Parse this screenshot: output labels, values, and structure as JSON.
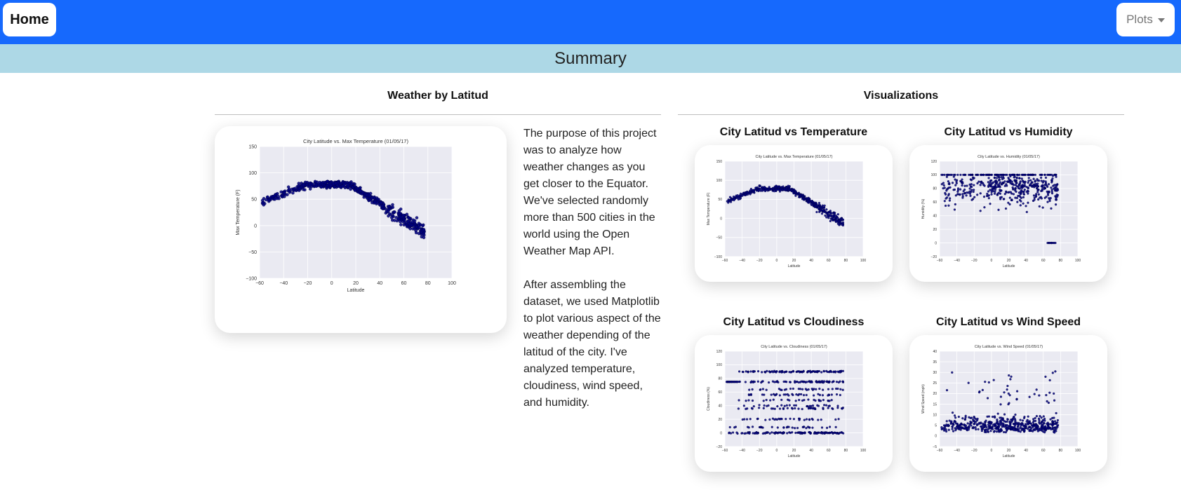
{
  "nav": {
    "home_label": "Home",
    "plots_label": "Plots"
  },
  "summary": {
    "title": "Summary"
  },
  "left_section": {
    "title": "Weather by Latitud",
    "paragraphs": [
      "The purpose of this project was to analyze how weather changes as you get closer to the Equator. We've selected randomly more than 500 cities in the world using the Open Weather Map API.",
      "After assembling the dataset, we used Matplotlib to plot various aspect of the weather depending of the latitud of the city. I've analyzed temperature, cloudiness, wind speed, and humidity."
    ]
  },
  "right_section": {
    "title": "Visualizations",
    "thumb_titles": {
      "temperature": "City Latitud vs Temperature",
      "humidity": "City Latitud vs Humidity",
      "cloudiness": "City Latitud vs Cloudiness",
      "wind": "City Latitud vs Wind Speed"
    }
  },
  "colors": {
    "navbar": "#1669fd",
    "summary_bar": "#add8e6",
    "plot_bg": "#eaeaf2",
    "point": "#000080"
  },
  "chart_data": [
    {
      "id": "main_temp",
      "type": "scatter",
      "title": "City Latitude vs. Max Temperature (01/05/17)",
      "xlabel": "Latitude",
      "ylabel": "Max Temperature (F)",
      "xlim": [
        -60,
        100
      ],
      "ylim": [
        -100,
        150
      ],
      "xticks": [
        -60,
        -40,
        -20,
        0,
        20,
        40,
        60,
        80,
        100
      ],
      "yticks": [
        -100,
        -50,
        0,
        50,
        100,
        150
      ],
      "grid": true
    },
    {
      "id": "thumb_temp",
      "type": "scatter",
      "title": "City Latitude vs. Max Temperature (01/05/17)",
      "xlabel": "Latitude",
      "ylabel": "Max Temperature (F)",
      "xlim": [
        -60,
        100
      ],
      "ylim": [
        -100,
        150
      ],
      "xticks": [
        -60,
        -40,
        -20,
        0,
        20,
        40,
        60,
        80,
        100
      ],
      "yticks": [
        -100,
        -50,
        0,
        50,
        100,
        150
      ],
      "grid": true
    },
    {
      "id": "thumb_humidity",
      "type": "scatter",
      "title": "City Latitude vs. Humidity (01/05/17)",
      "xlabel": "Latitude",
      "ylabel": "Humidity (%)",
      "xlim": [
        -60,
        100
      ],
      "ylim": [
        -20,
        120
      ],
      "xticks": [
        -60,
        -40,
        -20,
        0,
        20,
        40,
        60,
        80,
        100
      ],
      "yticks": [
        -20,
        0,
        20,
        40,
        60,
        80,
        100,
        120
      ],
      "grid": true
    },
    {
      "id": "thumb_cloudiness",
      "type": "scatter",
      "title": "City Latitude vs. Cloudiness (01/05/17)",
      "xlabel": "Latitude",
      "ylabel": "Cloudiness (%)",
      "xlim": [
        -60,
        100
      ],
      "ylim": [
        -20,
        120
      ],
      "xticks": [
        -60,
        -40,
        -20,
        0,
        20,
        40,
        60,
        80,
        100
      ],
      "yticks": [
        -20,
        0,
        20,
        40,
        60,
        80,
        100,
        120
      ],
      "grid": true
    },
    {
      "id": "thumb_wind",
      "type": "scatter",
      "title": "City Latitude vs. Wind Speed (01/05/17)",
      "xlabel": "Latitude",
      "ylabel": "Wind Speed (mph)",
      "xlim": [
        -60,
        100
      ],
      "ylim": [
        -5,
        40
      ],
      "xticks": [
        -60,
        -40,
        -20,
        0,
        20,
        40,
        60,
        80,
        100
      ],
      "yticks": [
        -5,
        0,
        5,
        10,
        15,
        20,
        25,
        30,
        35,
        40
      ],
      "grid": true
    }
  ]
}
